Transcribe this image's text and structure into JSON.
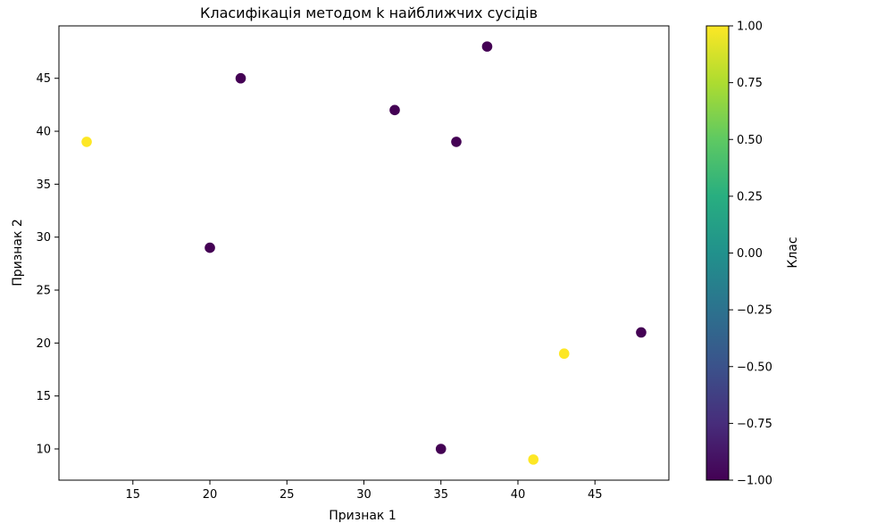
{
  "chart_data": {
    "type": "scatter",
    "title": "Класифікація методом k найближчих сусідів",
    "xlabel": "Признак 1",
    "ylabel": "Признак 2",
    "xlim": [
      10.2,
      49.8
    ],
    "ylim": [
      7.05,
      49.95
    ],
    "xticks": [
      15,
      20,
      25,
      30,
      35,
      40,
      45
    ],
    "yticks": [
      10,
      15,
      20,
      25,
      30,
      35,
      40,
      45
    ],
    "grid": false,
    "colormap": "viridis",
    "points": [
      {
        "x": 12,
        "y": 39,
        "class": 1
      },
      {
        "x": 20,
        "y": 29,
        "class": -1
      },
      {
        "x": 22,
        "y": 45,
        "class": -1
      },
      {
        "x": 32,
        "y": 42,
        "class": -1
      },
      {
        "x": 35,
        "y": 10,
        "class": -1
      },
      {
        "x": 36,
        "y": 39,
        "class": -1
      },
      {
        "x": 38,
        "y": 48,
        "class": -1
      },
      {
        "x": 41,
        "y": 9,
        "class": 1
      },
      {
        "x": 43,
        "y": 19,
        "class": 1
      },
      {
        "x": 48,
        "y": 21,
        "class": -1
      }
    ],
    "colorbar": {
      "label": "Клас",
      "min": -1.0,
      "max": 1.0,
      "ticks": [
        "1.00",
        "0.75",
        "0.50",
        "0.25",
        "0.00",
        "−0.25",
        "−0.50",
        "−0.75",
        "−1.00"
      ],
      "tick_values": [
        1.0,
        0.75,
        0.5,
        0.25,
        0.0,
        -0.25,
        -0.5,
        -0.75,
        -1.0
      ]
    },
    "colors": {
      "class_high": "#fde725",
      "class_low": "#440154"
    }
  }
}
